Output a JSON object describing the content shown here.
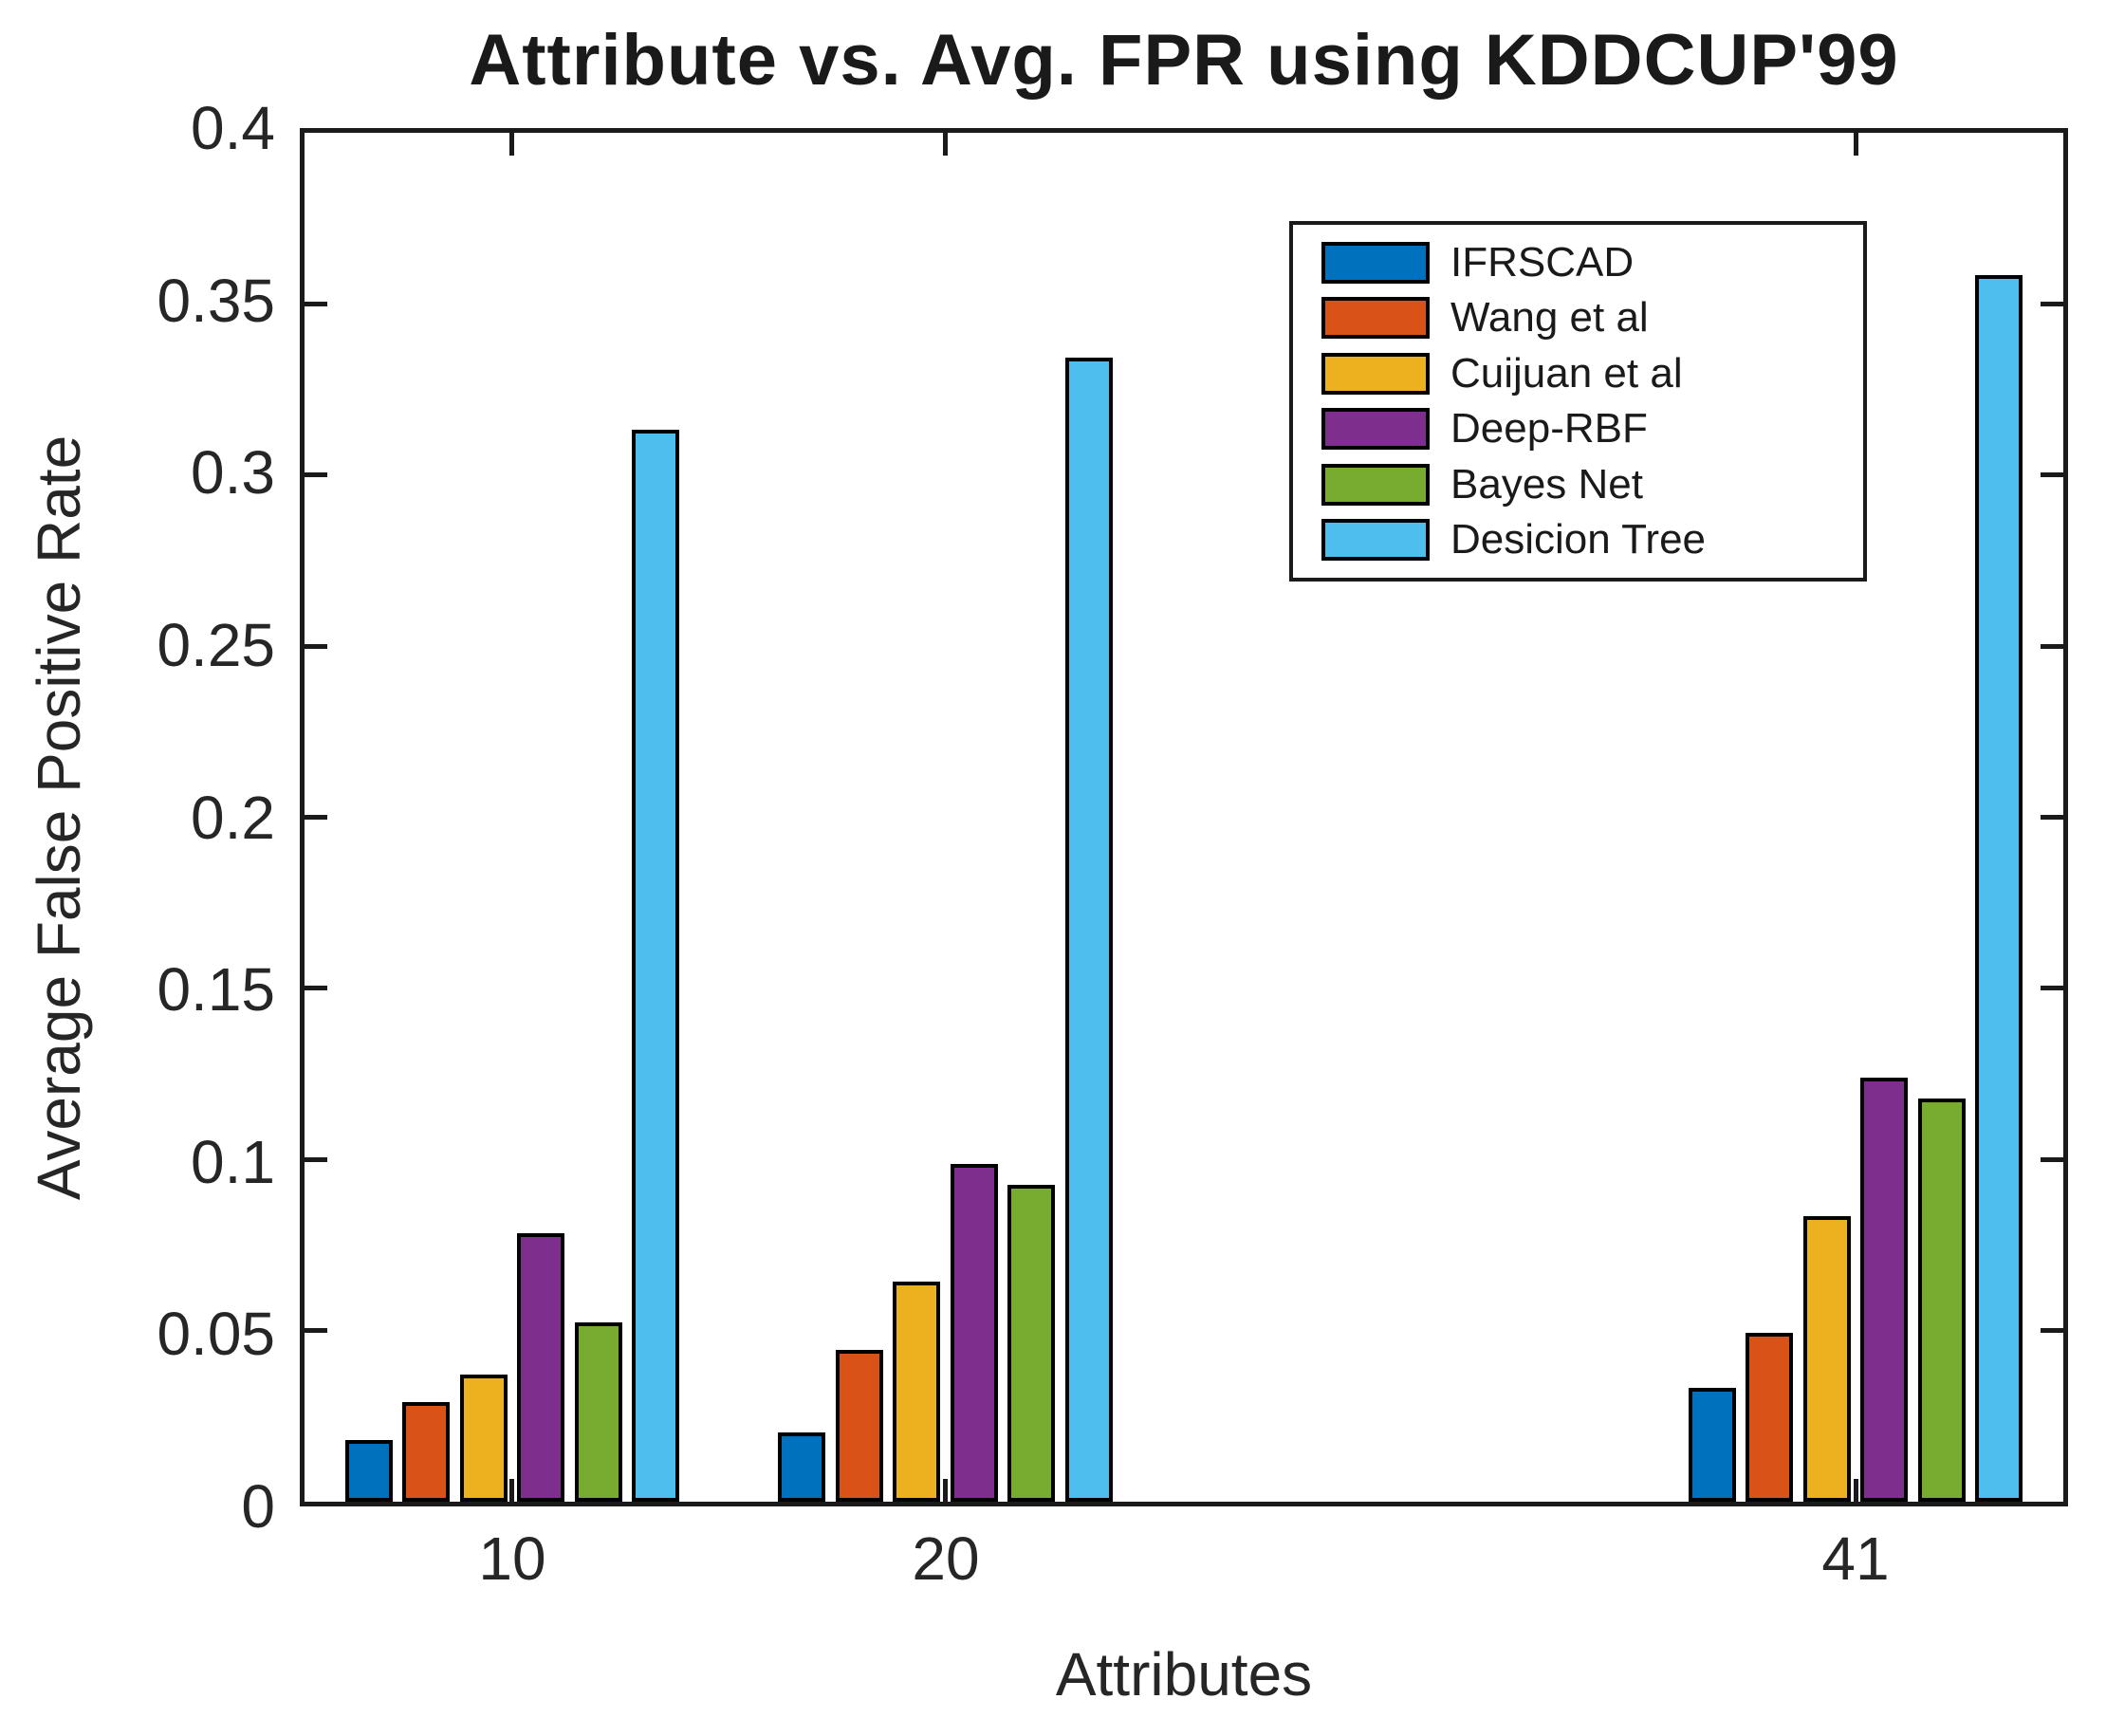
{
  "title": "Attribute vs. Avg. FPR using KDDCUP'99",
  "chart_data": {
    "type": "bar",
    "title": "Attribute vs. Avg. FPR using KDDCUP'99",
    "xlabel": "Attributes",
    "ylabel": "Average False Positive Rate",
    "categories": [
      10,
      20,
      41
    ],
    "x_tick_labels": [
      "10",
      "20",
      "41"
    ],
    "x_numeric": true,
    "xlim": [
      5.1,
      45.9
    ],
    "ylim": [
      0,
      0.4
    ],
    "yticks": [
      0,
      0.05,
      0.1,
      0.15,
      0.2,
      0.25,
      0.3,
      0.35,
      0.4
    ],
    "ytick_labels": [
      "0",
      "0.05",
      "0.1",
      "0.15",
      "0.2",
      "0.25",
      "0.3",
      "0.35",
      "0.4"
    ],
    "grid": false,
    "legend_position": "upper-right-inside",
    "bar_edge_color": "#000000",
    "axis_color": "#1a1a1a",
    "series": [
      {
        "name": "IFRSCAD",
        "color": "#0072BD",
        "values": [
          0.018,
          0.02,
          0.033
        ]
      },
      {
        "name": "Wang et al",
        "color": "#D95319",
        "values": [
          0.029,
          0.044,
          0.049
        ]
      },
      {
        "name": "Cuijuan et al",
        "color": "#EDB120",
        "values": [
          0.037,
          0.064,
          0.083
        ]
      },
      {
        "name": "Deep-RBF",
        "color": "#7E2F8E",
        "values": [
          0.078,
          0.098,
          0.123
        ]
      },
      {
        "name": "Bayes Net",
        "color": "#77AC30",
        "values": [
          0.052,
          0.092,
          0.117
        ]
      },
      {
        "name": "Desicion Tree",
        "color": "#4DBEEE",
        "values": [
          0.311,
          0.332,
          0.356
        ]
      }
    ]
  }
}
